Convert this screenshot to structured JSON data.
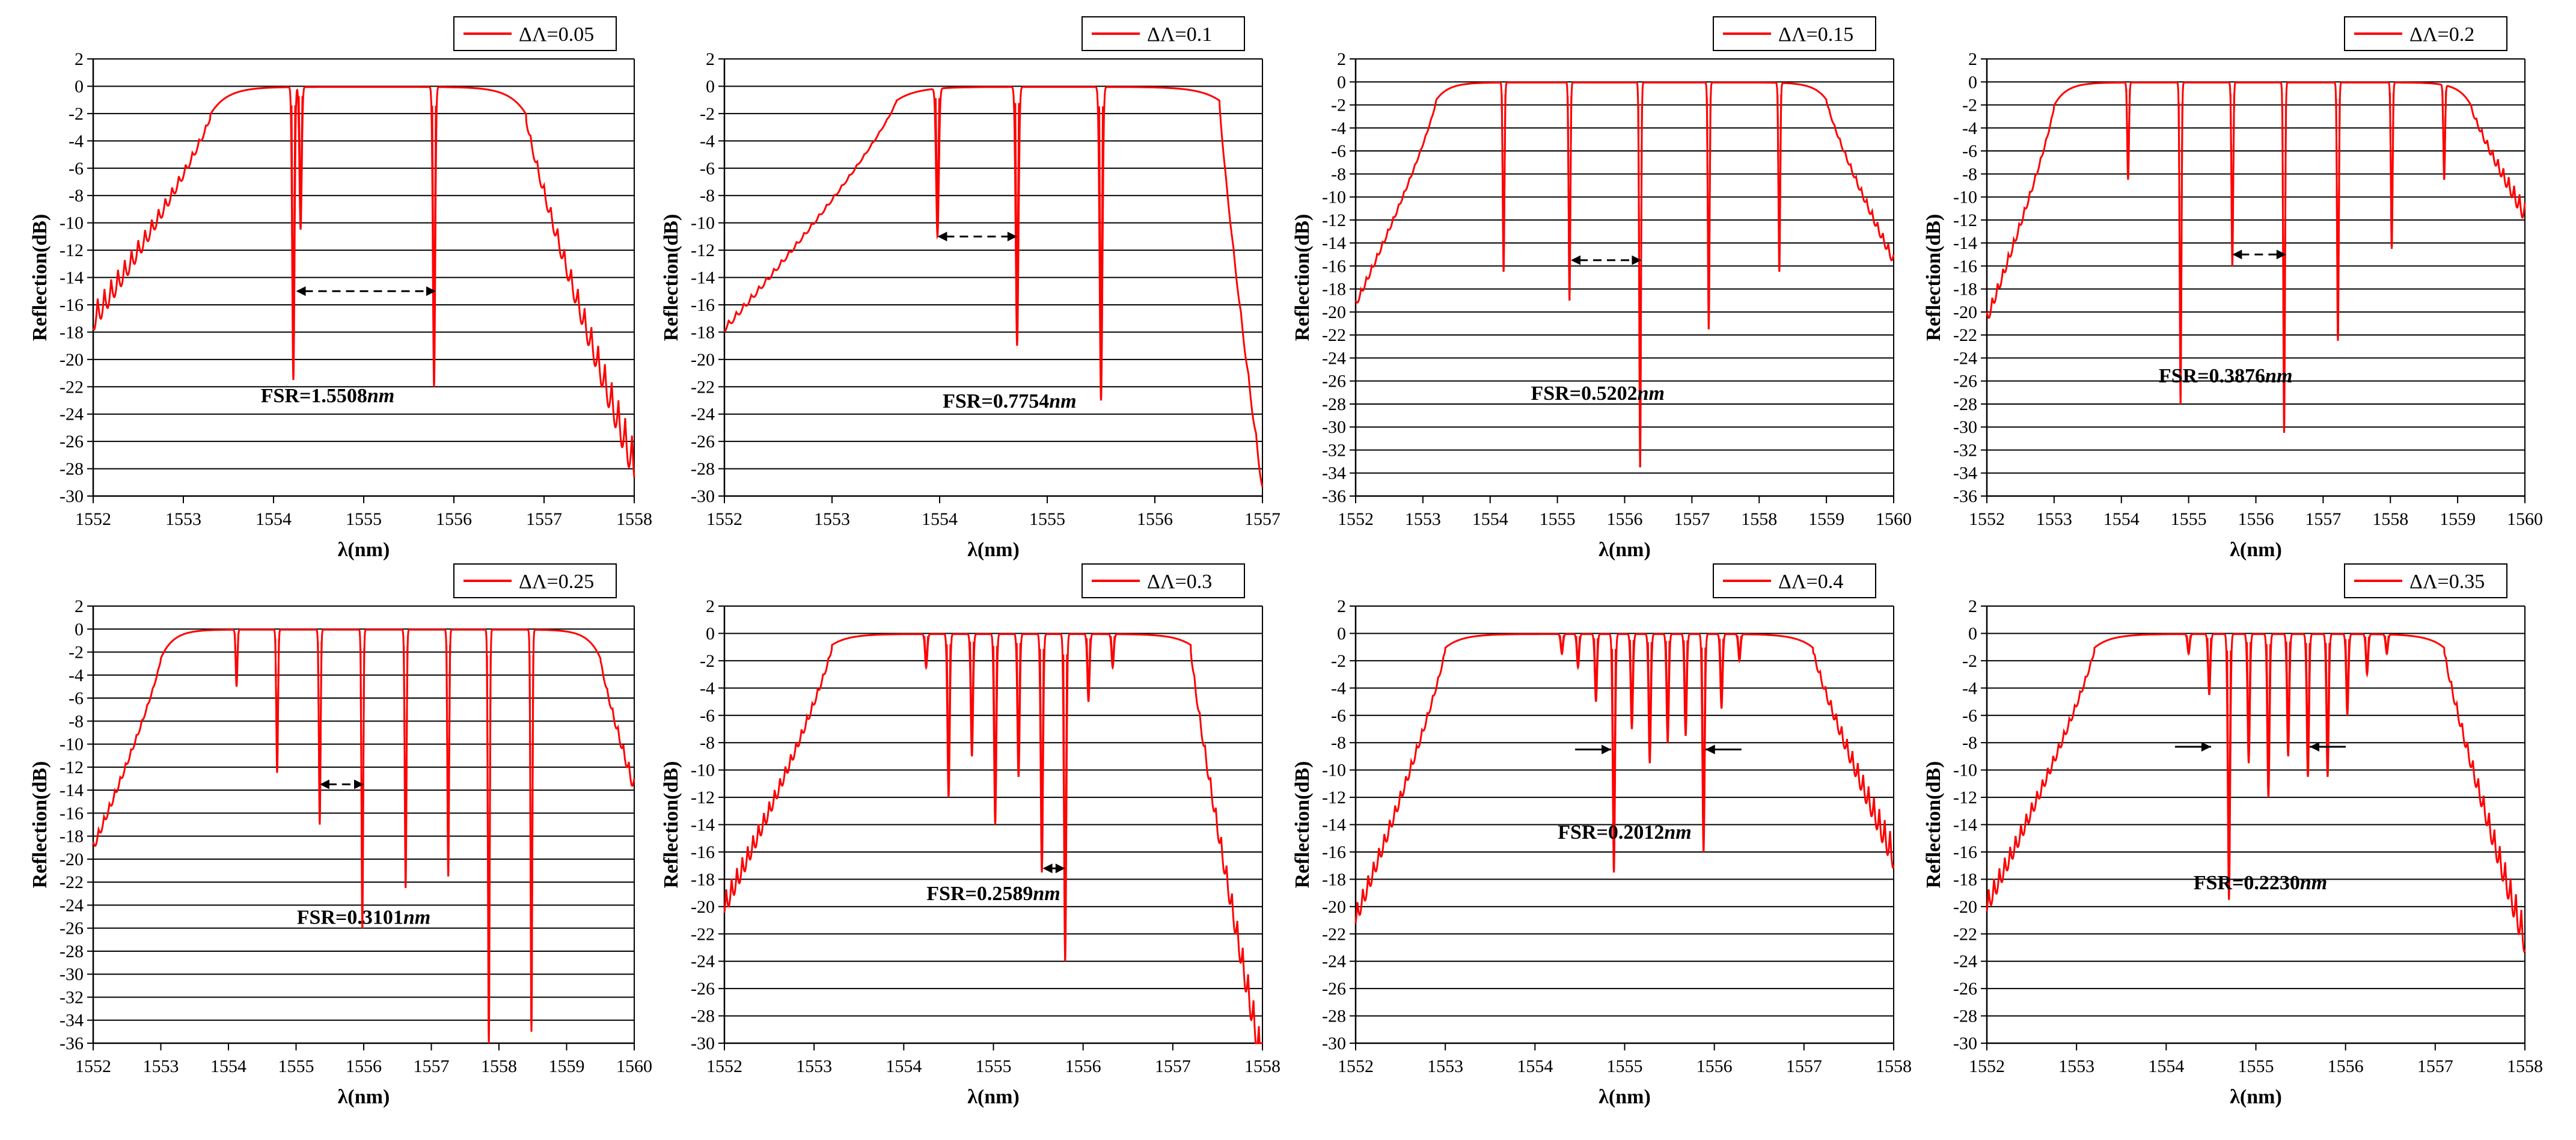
{
  "chart_data": [
    {
      "type": "line",
      "series": [
        {
          "name": "ΔΛ=0.05"
        }
      ],
      "xlabel": "λ(nm)",
      "ylabel": "Reflection(dB)",
      "xlim": [
        1552,
        1558
      ],
      "ylim": [
        -30,
        2
      ],
      "xticks": [
        1552,
        1553,
        1554,
        1555,
        1556,
        1557,
        1558
      ],
      "yticks": [
        2,
        0,
        -2,
        -4,
        -6,
        -8,
        -10,
        -12,
        -14,
        -16,
        -18,
        -20,
        -22,
        -24,
        -26,
        -28,
        -30
      ],
      "grid": "horizontal",
      "legend": "top-right",
      "annotation": {
        "text": "FSR=1.5508",
        "unit": "nm",
        "x": 1554.6,
        "y": -22.6
      },
      "arrow": {
        "x1": 1554.25,
        "x2": 1555.8,
        "y": -15,
        "dashed": true,
        "direction": "both"
      },
      "spectrum": {
        "start": 1553.3,
        "end": 1556.8,
        "sidelobe": -2,
        "edgeLeft": -16,
        "edgeRight": -26,
        "ripple": 1.6,
        "ripplePeriod": 0.075,
        "notches": [
          [
            1554.22,
            -21.5
          ],
          [
            1554.3,
            -10.5
          ],
          [
            1555.78,
            -22
          ]
        ]
      }
    },
    {
      "type": "line",
      "series": [
        {
          "name": "ΔΛ=0.1"
        }
      ],
      "xlabel": "λ(nm)",
      "ylabel": "Reflection(dB)",
      "xlim": [
        1552,
        1557
      ],
      "ylim": [
        -30,
        2
      ],
      "xticks": [
        1552,
        1553,
        1554,
        1555,
        1556,
        1557
      ],
      "yticks": [
        2,
        0,
        -2,
        -4,
        -6,
        -8,
        -10,
        -12,
        -14,
        -16,
        -18,
        -20,
        -22,
        -24,
        -26,
        -28,
        -30
      ],
      "grid": "horizontal",
      "legend": "top-right",
      "annotation": {
        "text": "FSR=0.7754",
        "unit": "nm",
        "x": 1554.65,
        "y": -23
      },
      "arrow": {
        "x1": 1553.98,
        "x2": 1554.72,
        "y": -11,
        "dashed": true,
        "direction": "both"
      },
      "spectrum": {
        "start": 1553.6,
        "end": 1556.6,
        "sidelobe": -1,
        "edgeLeft": -17.5,
        "edgeRight": -29,
        "ripple": 0.4,
        "ripplePeriod": 0.07,
        "notches": [
          [
            1553.98,
            -11
          ],
          [
            1554.72,
            -19
          ],
          [
            1555.5,
            -23
          ]
        ]
      }
    },
    {
      "type": "line",
      "series": [
        {
          "name": "ΔΛ=0.15"
        }
      ],
      "xlabel": "λ(nm)",
      "ylabel": "Reflection(dB)",
      "xlim": [
        1552,
        1560
      ],
      "ylim": [
        -36,
        2
      ],
      "xticks": [
        1552,
        1553,
        1554,
        1555,
        1556,
        1557,
        1558,
        1559,
        1560
      ],
      "yticks": [
        2,
        0,
        -2,
        -4,
        -6,
        -8,
        -10,
        -12,
        -14,
        -16,
        -18,
        -20,
        -22,
        -24,
        -26,
        -28,
        -30,
        -32,
        -34,
        -36
      ],
      "grid": "horizontal",
      "legend": "top-right",
      "annotation": {
        "text": "FSR=0.5202",
        "unit": "nm",
        "x": 1555.6,
        "y": -27
      },
      "arrow": {
        "x1": 1555.2,
        "x2": 1556.25,
        "y": -15.5,
        "dashed": true,
        "direction": "both"
      },
      "spectrum": {
        "start": 1553.2,
        "end": 1559.0,
        "sidelobe": -1.5,
        "edgeLeft": -19,
        "edgeRight": -15,
        "ripple": 0.5,
        "ripplePeriod": 0.08,
        "notches": [
          [
            1554.2,
            -16.5
          ],
          [
            1555.18,
            -19
          ],
          [
            1556.23,
            -33.5
          ],
          [
            1557.25,
            -21.5
          ],
          [
            1558.3,
            -16.5
          ]
        ]
      }
    },
    {
      "type": "line",
      "series": [
        {
          "name": "ΔΛ=0.2"
        }
      ],
      "xlabel": "λ(nm)",
      "ylabel": "Reflection(dB)",
      "xlim": [
        1552,
        1560
      ],
      "ylim": [
        -36,
        2
      ],
      "xticks": [
        1552,
        1553,
        1554,
        1555,
        1556,
        1557,
        1558,
        1559,
        1560
      ],
      "yticks": [
        2,
        0,
        -2,
        -4,
        -6,
        -8,
        -10,
        -12,
        -14,
        -16,
        -18,
        -20,
        -22,
        -24,
        -26,
        -28,
        -30,
        -32,
        -34,
        -36
      ],
      "grid": "horizontal",
      "legend": "top-right",
      "annotation": {
        "text": "FSR=0.3876",
        "unit": "nm",
        "x": 1555.55,
        "y": -25.5
      },
      "arrow": {
        "x1": 1555.65,
        "x2": 1556.45,
        "y": -15,
        "dashed": true,
        "direction": "both"
      },
      "spectrum": {
        "start": 1553.0,
        "end": 1559.2,
        "sidelobe": -2,
        "edgeLeft": -20,
        "edgeRight": -10.5,
        "ripple": 0.9,
        "ripplePeriod": 0.08,
        "notches": [
          [
            1554.1,
            -8.5
          ],
          [
            1554.88,
            -28
          ],
          [
            1555.65,
            -16
          ],
          [
            1556.42,
            -30.5
          ],
          [
            1557.22,
            -22.5
          ],
          [
            1558.02,
            -14.5
          ],
          [
            1558.8,
            -8.5
          ]
        ]
      }
    },
    {
      "type": "line",
      "series": [
        {
          "name": "ΔΛ=0.25"
        }
      ],
      "xlabel": "λ(nm)",
      "ylabel": "Reflection(dB)",
      "xlim": [
        1552,
        1560
      ],
      "ylim": [
        -36,
        2
      ],
      "xticks": [
        1552,
        1553,
        1554,
        1555,
        1556,
        1557,
        1558,
        1559,
        1560
      ],
      "yticks": [
        2,
        0,
        -2,
        -4,
        -6,
        -8,
        -10,
        -12,
        -14,
        -16,
        -18,
        -20,
        -22,
        -24,
        -26,
        -28,
        -30,
        -32,
        -34,
        -36
      ],
      "grid": "horizontal",
      "legend": "top-right",
      "annotation": {
        "text": "FSR=0.3101",
        "unit": "nm",
        "x": 1556.0,
        "y": -25
      },
      "arrow": {
        "x1": 1555.35,
        "x2": 1556.0,
        "y": -13.5,
        "dashed": true,
        "direction": "both"
      },
      "spectrum": {
        "start": 1553.0,
        "end": 1559.5,
        "sidelobe": -2.5,
        "edgeLeft": -18.5,
        "edgeRight": -13,
        "ripple": 0.7,
        "ripplePeriod": 0.08,
        "notches": [
          [
            1554.12,
            -5
          ],
          [
            1554.72,
            -12.5
          ],
          [
            1555.35,
            -17
          ],
          [
            1555.98,
            -26
          ],
          [
            1556.62,
            -22.5
          ],
          [
            1557.25,
            -21.5
          ],
          [
            1557.85,
            -36
          ],
          [
            1558.48,
            -35
          ]
        ]
      }
    },
    {
      "type": "line",
      "series": [
        {
          "name": "ΔΛ=0.3"
        }
      ],
      "xlabel": "λ(nm)",
      "ylabel": "Reflection(dB)",
      "xlim": [
        1552,
        1558
      ],
      "ylim": [
        -30,
        2
      ],
      "xticks": [
        1552,
        1553,
        1554,
        1555,
        1556,
        1557,
        1558
      ],
      "yticks": [
        2,
        0,
        -2,
        -4,
        -6,
        -8,
        -10,
        -12,
        -14,
        -16,
        -18,
        -20,
        -22,
        -24,
        -26,
        -28,
        -30
      ],
      "grid": "horizontal",
      "legend": "top-right",
      "annotation": {
        "text": "FSR=0.2589",
        "unit": "nm",
        "x": 1555.0,
        "y": -19
      },
      "arrow": {
        "x1": 1555.55,
        "x2": 1555.8,
        "y": -17.2,
        "dashed": false,
        "direction": "both"
      },
      "spectrum": {
        "start": 1553.2,
        "end": 1557.2,
        "sidelobe": -0.8,
        "edgeLeft": -19,
        "edgeRight": -30,
        "ripple": 1.4,
        "ripplePeriod": 0.06,
        "notches": [
          [
            1554.25,
            -2.5
          ],
          [
            1554.5,
            -12
          ],
          [
            1554.76,
            -9
          ],
          [
            1555.02,
            -14
          ],
          [
            1555.28,
            -10.5
          ],
          [
            1555.54,
            -17.5
          ],
          [
            1555.8,
            -24
          ],
          [
            1556.06,
            -5
          ],
          [
            1556.33,
            -2.5
          ]
        ]
      }
    },
    {
      "type": "line",
      "series": [
        {
          "name": "ΔΛ=0.4"
        }
      ],
      "xlabel": "λ(nm)",
      "ylabel": "Reflection(dB)",
      "xlim": [
        1552,
        1558
      ],
      "ylim": [
        -30,
        2
      ],
      "xticks": [
        1552,
        1553,
        1554,
        1555,
        1556,
        1557,
        1558
      ],
      "yticks": [
        2,
        0,
        -2,
        -4,
        -6,
        -8,
        -10,
        -12,
        -14,
        -16,
        -18,
        -20,
        -22,
        -24,
        -26,
        -28,
        -30
      ],
      "grid": "horizontal",
      "legend": "top-right",
      "annotation": {
        "text": "FSR=0.2012",
        "unit": "nm",
        "x": 1555.0,
        "y": -14.5
      },
      "arrow": {
        "x1": 1554.85,
        "x2": 1555.9,
        "y": -8.5,
        "dashed": false,
        "direction": "inward"
      },
      "spectrum": {
        "start": 1553.0,
        "end": 1557.1,
        "sidelobe": -1,
        "edgeLeft": -20,
        "edgeRight": -15,
        "ripple": 1.2,
        "ripplePeriod": 0.06,
        "notches": [
          [
            1554.3,
            -1.5
          ],
          [
            1554.48,
            -2.5
          ],
          [
            1554.68,
            -5
          ],
          [
            1554.88,
            -17.5
          ],
          [
            1555.08,
            -7
          ],
          [
            1555.28,
            -9.5
          ],
          [
            1555.48,
            -8
          ],
          [
            1555.68,
            -7.5
          ],
          [
            1555.88,
            -16
          ],
          [
            1556.08,
            -5.5
          ],
          [
            1556.28,
            -2
          ]
        ]
      }
    },
    {
      "type": "line",
      "series": [
        {
          "name": "ΔΛ=0.35"
        }
      ],
      "xlabel": "λ(nm)",
      "ylabel": "Reflection(dB)",
      "xlim": [
        1552,
        1558
      ],
      "ylim": [
        -30,
        2
      ],
      "xticks": [
        1552,
        1553,
        1554,
        1555,
        1556,
        1557,
        1558
      ],
      "yticks": [
        2,
        0,
        -2,
        -4,
        -6,
        -8,
        -10,
        -12,
        -14,
        -16,
        -18,
        -20,
        -22,
        -24,
        -26,
        -28,
        -30
      ],
      "grid": "horizontal",
      "legend": "top-right",
      "annotation": {
        "text": "FSR=0.2230",
        "unit": "nm",
        "x": 1555.05,
        "y": -18.2
      },
      "arrow": {
        "x1": 1554.5,
        "x2": 1555.6,
        "y": -8.3,
        "dashed": false,
        "direction": "inward"
      },
      "spectrum": {
        "start": 1553.2,
        "end": 1557.1,
        "sidelobe": -1,
        "edgeLeft": -19,
        "edgeRight": -21,
        "ripple": 1.3,
        "ripplePeriod": 0.06,
        "notches": [
          [
            1554.25,
            -1.5
          ],
          [
            1554.48,
            -4.5
          ],
          [
            1554.7,
            -19.5
          ],
          [
            1554.92,
            -9.5
          ],
          [
            1555.14,
            -12
          ],
          [
            1555.36,
            -9
          ],
          [
            1555.58,
            -10.5
          ],
          [
            1555.8,
            -10.5
          ],
          [
            1556.02,
            -6
          ],
          [
            1556.24,
            -3
          ],
          [
            1556.46,
            -1.5
          ]
        ]
      }
    }
  ],
  "colors": {
    "series": "#ff0000",
    "grid": "#000000",
    "text": "#000000"
  }
}
